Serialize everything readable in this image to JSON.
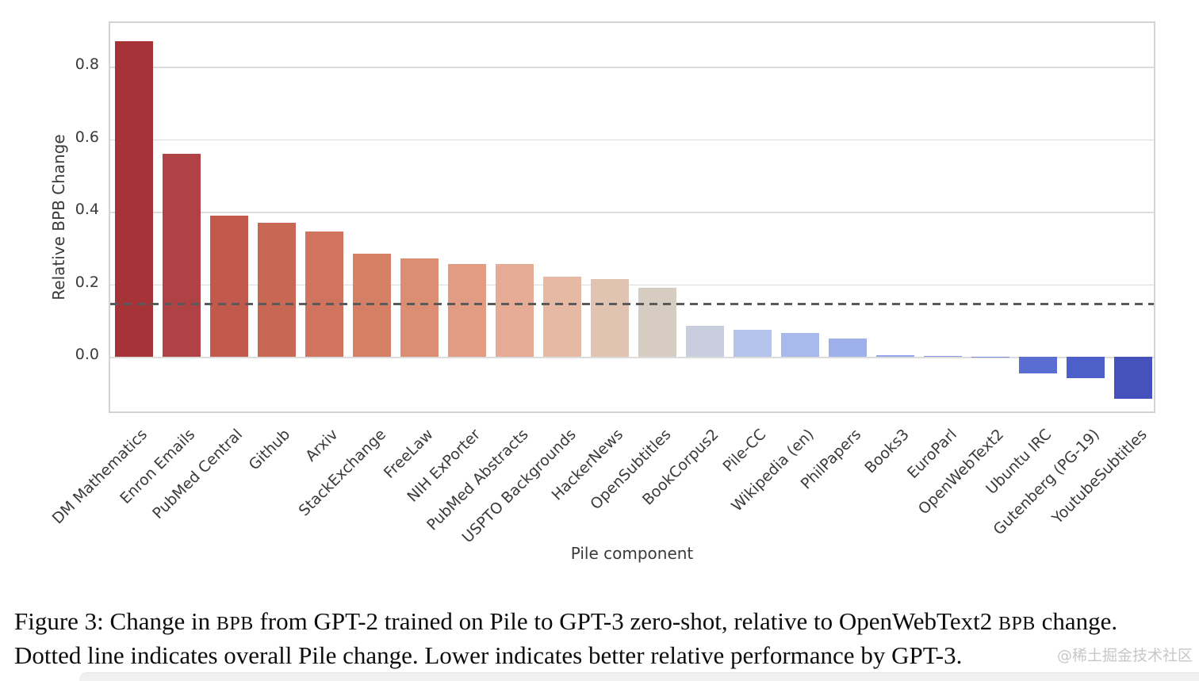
{
  "chart_data": {
    "type": "bar",
    "title": "",
    "xlabel": "Pile component",
    "ylabel": "Relative BPB Change",
    "ylim": [
      -0.16,
      0.92
    ],
    "yticks": [
      0.0,
      0.2,
      0.4,
      0.6,
      0.8
    ],
    "grid": true,
    "legend": "none",
    "reference_line": {
      "style": "dashed",
      "value": 0.145,
      "meaning": "overall Pile change"
    },
    "categories": [
      "DM Mathematics",
      "Enron Emails",
      "PubMed Central",
      "Github",
      "Arxiv",
      "StackExchange",
      "FreeLaw",
      "NIH ExPorter",
      "PubMed Abstracts",
      "USPTO Backgrounds",
      "HackerNews",
      "OpenSubtitles",
      "BookCorpus2",
      "Pile-CC",
      "Wikipedia (en)",
      "PhilPapers",
      "Books3",
      "EuroParl",
      "OpenWebText2",
      "Ubuntu IRC",
      "Gutenberg (PG-19)",
      "YoutubeSubtitles"
    ],
    "values": [
      0.87,
      0.56,
      0.39,
      0.37,
      0.345,
      0.285,
      0.27,
      0.255,
      0.255,
      0.22,
      0.215,
      0.19,
      0.085,
      0.075,
      0.065,
      0.05,
      0.004,
      0.002,
      0.0,
      -0.045,
      -0.06,
      -0.115
    ],
    "bar_colors": [
      "#a63338",
      "#b04144",
      "#c15a4d",
      "#c96755",
      "#d07460",
      "#d67f67",
      "#dc8e74",
      "#e19c83",
      "#e6ab94",
      "#e5b9a3",
      "#e0c3b1",
      "#d7ccc2",
      "#c8cedd",
      "#b3c3ea",
      "#a8baec",
      "#9db0e9",
      "#92a5e6",
      "#8799e1",
      "#7c8cdb",
      "#5a6ed2",
      "#4d5fc9",
      "#4552bb"
    ]
  },
  "caption": {
    "line1": [
      {
        "text": "Figure 3: Change in ",
        "smallcaps": false
      },
      {
        "text": "BPB",
        "smallcaps": true
      },
      {
        "text": " from GPT-2 trained on Pile to GPT-3 zero-shot, relative to OpenWebText2 ",
        "smallcaps": false
      },
      {
        "text": "BPB",
        "smallcaps": true
      },
      {
        "text": " change.",
        "smallcaps": false
      }
    ],
    "line2": [
      {
        "text": "Dotted line indicates overall Pile change. Lower indicates better relative performance by GPT-3.",
        "smallcaps": false
      }
    ]
  },
  "watermark": "@稀土掘金技术社区",
  "colors": {
    "gridline": "#dcdcdc",
    "spine": "#d3d3d3",
    "dashed_line": "#5a5a5a",
    "tick_text": "#3a3a3a",
    "caption_text": "#0d0d0d",
    "watermark_text": "#c7c7c7",
    "bottom_strip": "#f0f0f1"
  }
}
